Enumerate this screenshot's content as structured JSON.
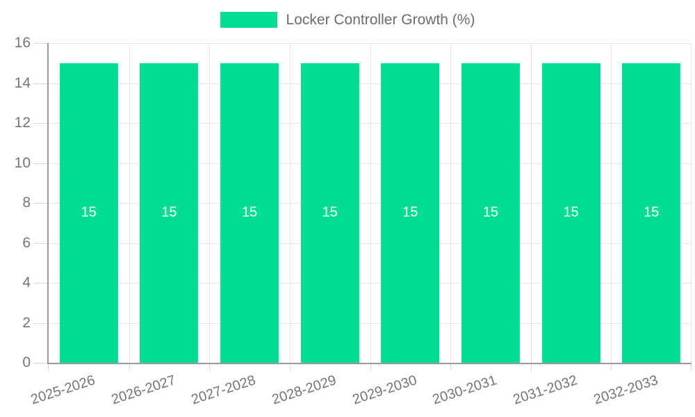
{
  "legend": {
    "label": "Locker Controller Growth (%)"
  },
  "colors": {
    "bar": "#00DE92",
    "bar_label": "#FFFFFF",
    "grid": "#E3E3E3",
    "tick": "#D6D6D6",
    "axis": "#9B9B9B",
    "axis_label": "#757575",
    "legend_text": "#6B6B6B",
    "background": "#FFFFFF"
  },
  "chart_data": {
    "type": "bar",
    "title": "",
    "categories": [
      "2025-2026",
      "2026-2027",
      "2027-2028",
      "2028-2029",
      "2029-2030",
      "2030-2031",
      "2031-2032",
      "2032-2033"
    ],
    "series": [
      {
        "name": "Locker Controller Growth (%)",
        "values": [
          15,
          15,
          15,
          15,
          15,
          15,
          15,
          15
        ]
      }
    ],
    "bar_value_labels": [
      "15",
      "15",
      "15",
      "15",
      "15",
      "15",
      "15",
      "15"
    ],
    "xlabel": "",
    "ylabel": "",
    "ylim": [
      0,
      16
    ],
    "yticks": [
      0,
      2,
      4,
      6,
      8,
      10,
      12,
      14,
      16
    ],
    "grid": true,
    "legend_position": "top",
    "xtick_rotation_deg": -18
  }
}
